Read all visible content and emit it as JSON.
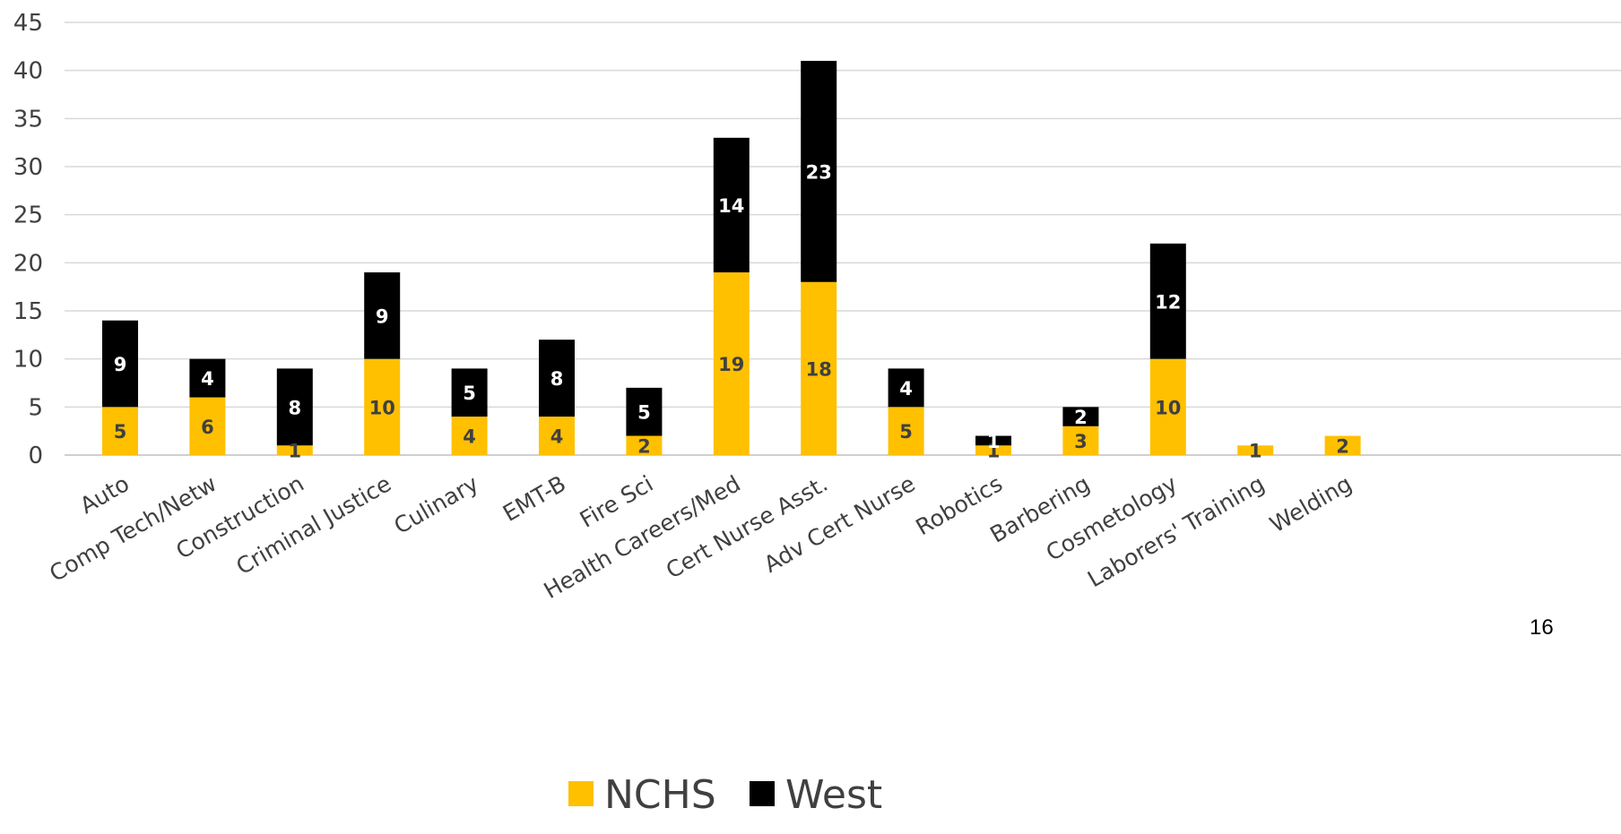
{
  "page_number": "16",
  "colors": {
    "NCHS": "#FFC000",
    "West": "#000000",
    "grid": "#D9D9D9",
    "text": "#404040"
  },
  "chart_data": {
    "type": "bar",
    "stacked": true,
    "title": "",
    "xlabel": "",
    "ylabel": "",
    "ylim": [
      0,
      45
    ],
    "yticks": [
      0,
      5,
      10,
      15,
      20,
      25,
      30,
      35,
      40,
      45
    ],
    "grid": true,
    "legend": "bottom",
    "categories": [
      "Auto",
      "Comp Tech/Netw",
      "Construction",
      "Criminal Justice",
      "Culinary",
      "EMT-B",
      "Fire Sci",
      "Health Careers/Med",
      "Cert Nurse Asst.",
      "Adv Cert Nurse",
      "Robotics",
      "Barbering",
      "Cosmetology",
      "Laborers' Training",
      "Welding"
    ],
    "series": [
      {
        "name": "NCHS",
        "values": [
          5,
          6,
          1,
          10,
          4,
          4,
          2,
          19,
          18,
          5,
          1,
          3,
          10,
          1,
          2
        ]
      },
      {
        "name": "West",
        "values": [
          9,
          4,
          8,
          9,
          5,
          8,
          5,
          14,
          23,
          4,
          1,
          2,
          12,
          0,
          0
        ]
      }
    ]
  }
}
